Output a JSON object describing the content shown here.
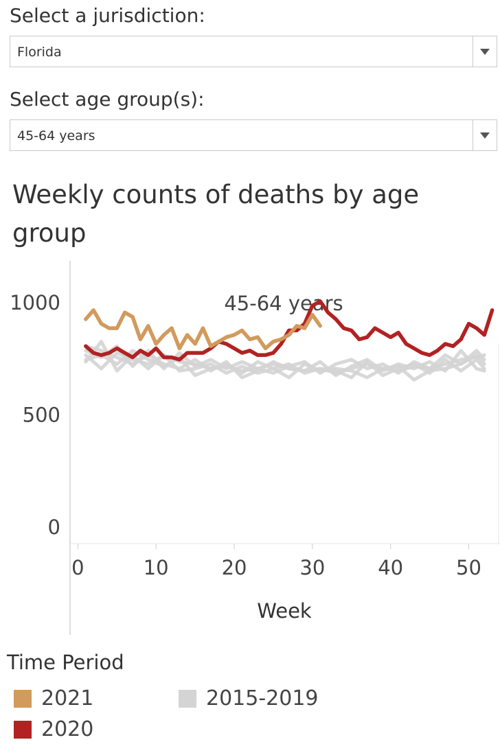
{
  "filters": {
    "jurisdiction_label": "Select a jurisdiction:",
    "jurisdiction_value": "Florida",
    "age_label": "Select age group(s):",
    "age_value": "45-64 years"
  },
  "chart_title": "Weekly counts of deaths by age group",
  "legend": {
    "title": "Time Period",
    "items": [
      {
        "label": "2021",
        "color": "#d29a5c"
      },
      {
        "label": "2015-2019",
        "color": "#d4d4d4"
      },
      {
        "label": "2020",
        "color": "#b22222"
      }
    ]
  },
  "chart_data": {
    "type": "line",
    "title": "45-64 years",
    "xlabel": "Week",
    "ylabel": "",
    "xlim": [
      -1,
      54
    ],
    "ylim": [
      -80,
      1180
    ],
    "xticks": [
      0,
      10,
      20,
      30,
      40,
      50
    ],
    "yticks": [
      0,
      500,
      1000
    ],
    "series": [
      {
        "name": "2015-2019 A",
        "color": "#d4d4d4",
        "x": [
          1,
          3,
          5,
          7,
          9,
          11,
          13,
          15,
          17,
          19,
          21,
          23,
          25,
          27,
          29,
          31,
          33,
          35,
          37,
          39,
          41,
          43,
          45,
          47,
          49,
          51,
          52
        ],
        "values": [
          760,
          700,
          770,
          740,
          720,
          760,
          730,
          720,
          700,
          710,
          690,
          700,
          720,
          700,
          690,
          700,
          680,
          700,
          720,
          700,
          690,
          710,
          700,
          720,
          740,
          750,
          760
        ]
      },
      {
        "name": "2015-2019 B",
        "color": "#d4d4d4",
        "x": [
          1,
          3,
          5,
          7,
          9,
          11,
          13,
          15,
          17,
          19,
          21,
          23,
          25,
          27,
          29,
          31,
          33,
          35,
          37,
          39,
          41,
          43,
          45,
          47,
          49,
          51,
          52
        ],
        "values": [
          740,
          760,
          720,
          780,
          740,
          710,
          750,
          670,
          700,
          720,
          680,
          730,
          700,
          660,
          720,
          690,
          700,
          690,
          660,
          700,
          710,
          650,
          690,
          700,
          720,
          760,
          720
        ]
      },
      {
        "name": "2015-2019 C",
        "color": "#d4d4d4",
        "x": [
          1,
          3,
          5,
          7,
          9,
          11,
          13,
          15,
          17,
          19,
          21,
          23,
          25,
          27,
          29,
          31,
          33,
          35,
          37,
          39,
          41,
          43,
          45,
          47,
          49,
          51,
          52
        ],
        "values": [
          800,
          780,
          750,
          720,
          760,
          720,
          700,
          740,
          690,
          730,
          660,
          690,
          730,
          700,
          690,
          730,
          670,
          710,
          740,
          690,
          720,
          700,
          730,
          690,
          780,
          700,
          690
        ]
      },
      {
        "name": "2015-2019 D",
        "color": "#d4d4d4",
        "x": [
          1,
          3,
          5,
          7,
          9,
          11,
          13,
          15,
          17,
          19,
          21,
          23,
          25,
          27,
          29,
          31,
          33,
          35,
          37,
          39,
          41,
          43,
          45,
          47,
          49,
          51,
          52
        ],
        "values": [
          730,
          820,
          690,
          760,
          700,
          760,
          690,
          700,
          720,
          680,
          710,
          680,
          700,
          720,
          680,
          700,
          690,
          660,
          730,
          670,
          700,
          720,
          680,
          740,
          690,
          740,
          700
        ]
      },
      {
        "name": "2015-2019 E",
        "color": "#d4d4d4",
        "x": [
          1,
          3,
          5,
          7,
          9,
          11,
          13,
          15,
          17,
          19,
          21,
          23,
          25,
          27,
          29,
          31,
          33,
          35,
          37,
          39,
          41,
          43,
          45,
          47,
          49,
          51,
          52
        ],
        "values": [
          780,
          750,
          800,
          710,
          780,
          700,
          770,
          710,
          740,
          700,
          730,
          700,
          680,
          710,
          730,
          680,
          720,
          740,
          700,
          720,
          680,
          730,
          700,
          760,
          720,
          780,
          740
        ]
      },
      {
        "name": "2020",
        "color": "#b22222",
        "x": [
          1,
          2,
          3,
          4,
          5,
          6,
          7,
          8,
          9,
          10,
          11,
          12,
          13,
          14,
          15,
          16,
          17,
          18,
          19,
          20,
          21,
          22,
          23,
          24,
          25,
          26,
          27,
          28,
          29,
          30,
          31,
          32,
          33,
          34,
          35,
          36,
          37,
          38,
          39,
          40,
          41,
          42,
          43,
          44,
          45,
          46,
          47,
          48,
          49,
          50,
          51,
          52,
          53
        ],
        "values": [
          800,
          770,
          760,
          770,
          790,
          770,
          750,
          780,
          760,
          790,
          750,
          750,
          740,
          770,
          770,
          770,
          790,
          820,
          810,
          790,
          770,
          780,
          760,
          760,
          770,
          810,
          870,
          870,
          900,
          980,
          1000,
          950,
          920,
          880,
          870,
          830,
          840,
          880,
          860,
          840,
          860,
          810,
          790,
          770,
          760,
          780,
          810,
          800,
          830,
          900,
          880,
          850,
          960
        ]
      },
      {
        "name": "2021",
        "color": "#d29a5c",
        "x": [
          1,
          2,
          3,
          4,
          5,
          6,
          7,
          8,
          9,
          10,
          11,
          12,
          13,
          14,
          15,
          16,
          17,
          18,
          19,
          20,
          21,
          22,
          23,
          24,
          25,
          26,
          27,
          28,
          29,
          30,
          31
        ],
        "values": [
          920,
          960,
          900,
          880,
          880,
          950,
          930,
          830,
          890,
          810,
          850,
          880,
          790,
          850,
          810,
          880,
          800,
          820,
          840,
          850,
          870,
          830,
          840,
          790,
          820,
          830,
          850,
          890,
          880,
          940,
          890
        ]
      }
    ]
  }
}
